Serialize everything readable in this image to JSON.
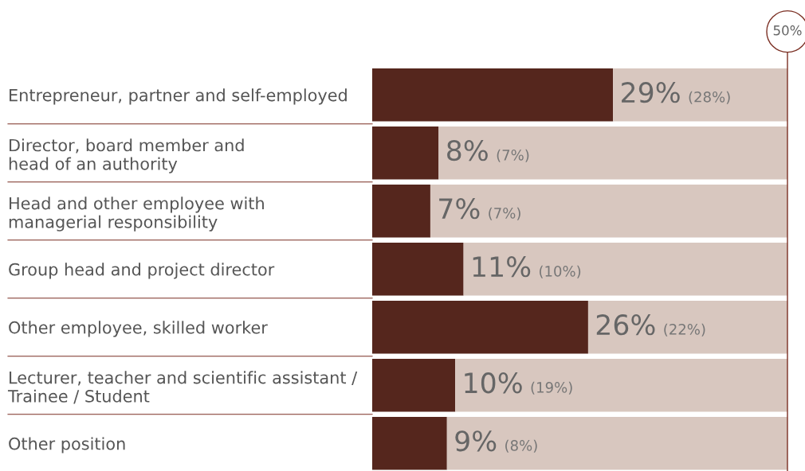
{
  "chart_data": {
    "type": "bar",
    "orientation": "horizontal",
    "stacked": true,
    "categories": [
      "Entrepreneur, partner and self-employed",
      "Director, board member and\nhead of an authority",
      "Head and other employee with\nmanagerial responsibility",
      "Group head and project director",
      "Other employee, skilled worker",
      "Lecturer, teacher and scientific assistant /\nTrainee / Student",
      "Other position"
    ],
    "series": [
      {
        "color": "#55261d",
        "values": [
          29,
          8,
          7,
          11,
          26,
          10,
          9
        ],
        "value_labels": [
          "29% (28%)",
          "8% (7%)",
          "7% (7%)",
          "11% (10%)",
          "26% (22%)",
          "10% (19%)",
          "9% (8%)"
        ]
      },
      {
        "color": "#d8c7bf",
        "values": [
          21,
          42,
          43,
          39,
          24,
          40,
          41
        ]
      }
    ],
    "xlim": [
      0,
      50
    ],
    "tick_labels": "y",
    "grid": false,
    "legend": false,
    "ref_lines": [
      {
        "axis": "x",
        "value": 50,
        "label": "50%",
        "color": "#7a2e22"
      }
    ]
  }
}
